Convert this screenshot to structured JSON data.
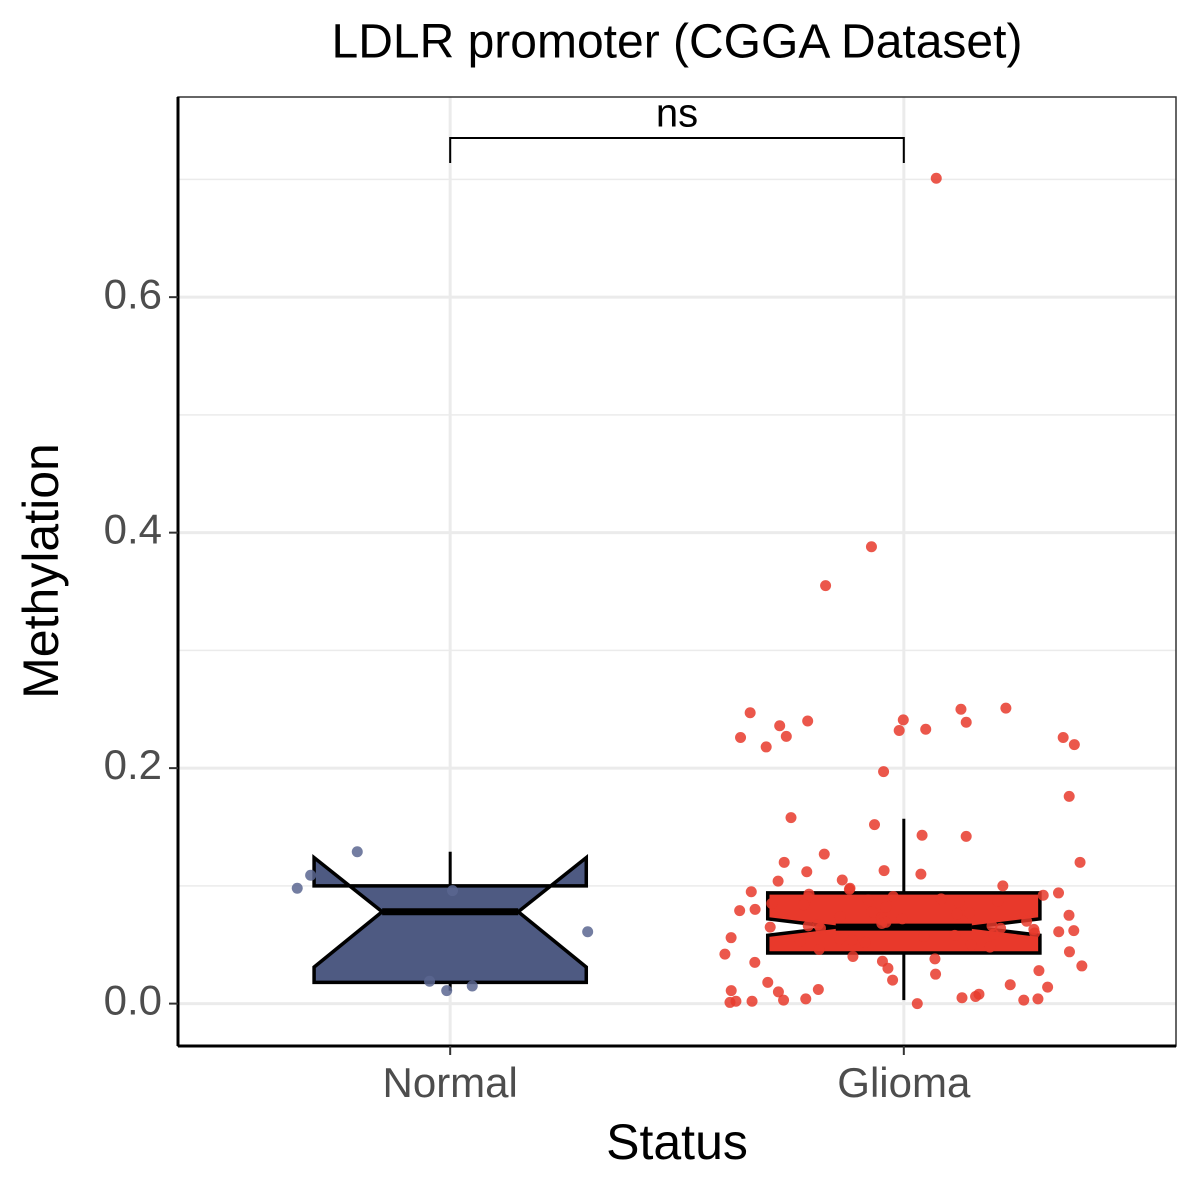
{
  "chart_data": {
    "type": "box",
    "title": "LDLR promoter (CGGA Dataset)",
    "x_label": "Status",
    "y_label": "Methylation",
    "categories": [
      "Normal",
      "Glioma"
    ],
    "boxes": [
      {
        "name": "Normal",
        "color": "#4e5a82",
        "point_color": "#5a6690",
        "q1": 0.018,
        "median": 0.078,
        "q3": 0.1,
        "whisker_low": 0.011,
        "whisker_high": 0.129,
        "notch_low": 0.031,
        "notch_high": 0.124,
        "points": [
          0.011,
          0.015,
          0.109,
          0.129,
          0.019,
          0.096,
          0.098,
          0.061
        ]
      },
      {
        "name": "Glioma",
        "color": "#e8392b",
        "point_color": "#e8392b",
        "q1": 0.043,
        "median": 0.065,
        "q3": 0.094,
        "whisker_low": 0.003,
        "whisker_high": 0.157,
        "notch_low": 0.058,
        "notch_high": 0.072,
        "points": [
          0.701,
          0.388,
          0.355,
          0.251,
          0.25,
          0.247,
          0.241,
          0.24,
          0.239,
          0.236,
          0.233,
          0.232,
          0.227,
          0.226,
          0.226,
          0.22,
          0.218,
          0.197,
          0.176,
          0.158,
          0.152,
          0.143,
          0.142,
          0.127,
          0.12,
          0.12,
          0.113,
          0.112,
          0.11,
          0.105,
          0.104,
          0.1,
          0.098,
          0.097,
          0.095,
          0.094,
          0.093,
          0.092,
          0.091,
          0.09,
          0.089,
          0.088,
          0.087,
          0.086,
          0.085,
          0.084,
          0.082,
          0.08,
          0.079,
          0.078,
          0.077,
          0.076,
          0.075,
          0.074,
          0.073,
          0.072,
          0.071,
          0.07,
          0.069,
          0.068,
          0.067,
          0.066,
          0.066,
          0.065,
          0.064,
          0.064,
          0.063,
          0.062,
          0.061,
          0.06,
          0.059,
          0.058,
          0.057,
          0.056,
          0.055,
          0.054,
          0.053,
          0.052,
          0.05,
          0.048,
          0.046,
          0.044,
          0.042,
          0.04,
          0.038,
          0.036,
          0.035,
          0.032,
          0.03,
          0.028,
          0.025,
          0.02,
          0.018,
          0.016,
          0.014,
          0.012,
          0.011,
          0.01,
          0.008,
          0.006,
          0.005,
          0.004,
          0.004,
          0.003,
          0.003,
          0.002,
          0.002,
          0.001,
          0.0
        ]
      }
    ],
    "annotation": "ns",
    "ylim": [
      -0.036,
      0.77
    ],
    "yticks": [
      {
        "value": 0,
        "label": "0.0"
      },
      0.2,
      0.4,
      0.6
    ],
    "minor_grid": [
      0.1,
      0.3,
      0.5,
      0.7
    ],
    "grid": true
  }
}
